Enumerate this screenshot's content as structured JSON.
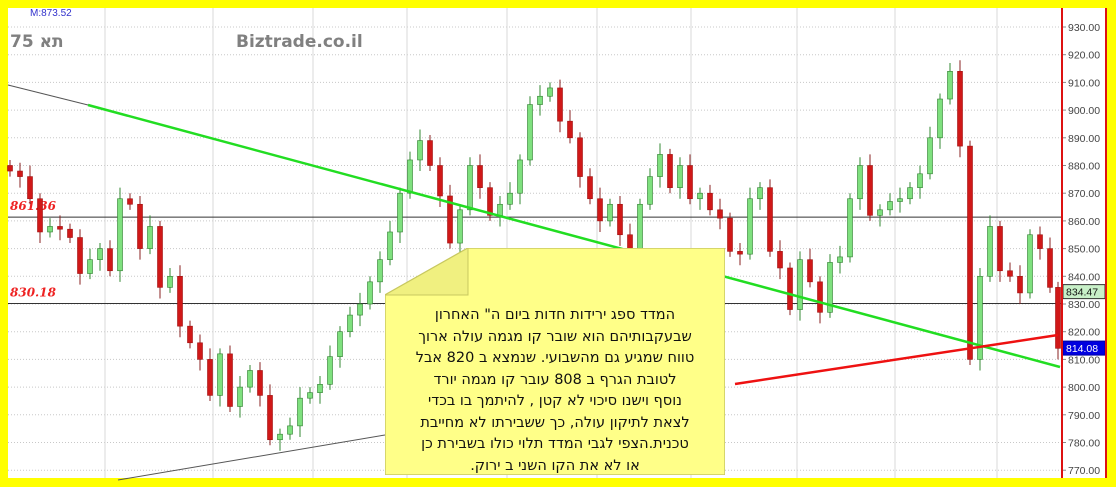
{
  "header": {
    "last_value_label": "M:873.52",
    "index_name": "תא 75",
    "site": "Biztrade.co.il"
  },
  "chart_data": {
    "type": "candlestick",
    "title": "",
    "ylim": [
      768,
      934
    ],
    "y_ticks": [
      "930.00",
      "920.00",
      "910.00",
      "900.00",
      "890.00",
      "880.00",
      "870.00",
      "860.00",
      "850.00",
      "840.00",
      "830.00",
      "820.00",
      "810.00",
      "800.00",
      "790.00",
      "780.00",
      "770.00"
    ],
    "closes": [
      878,
      876,
      868,
      856,
      858,
      857,
      854,
      841,
      846,
      850,
      842,
      868,
      866,
      850,
      858,
      836,
      840,
      822,
      816,
      810,
      797,
      812,
      793,
      800,
      806,
      797,
      781,
      783,
      786,
      796,
      798,
      801,
      811,
      820,
      826,
      830,
      838,
      846,
      856,
      870,
      882,
      889,
      880,
      869,
      852,
      864,
      880,
      872,
      862,
      866,
      870,
      882,
      902,
      905,
      908,
      896,
      890,
      876,
      868,
      860,
      866,
      855,
      848,
      866,
      876,
      884,
      872,
      880,
      868,
      870,
      864,
      861,
      849,
      848,
      868,
      872,
      849,
      843,
      828,
      846,
      838,
      827,
      845,
      847,
      868,
      880,
      862,
      864,
      867,
      868,
      872,
      877,
      890,
      904,
      914,
      887,
      810,
      840,
      858,
      842,
      840,
      834,
      855,
      850,
      836,
      814
    ],
    "first_open": 880,
    "horizontal_levels": [
      {
        "label": "861.36",
        "value": 861.36
      },
      {
        "label": "830.18",
        "value": 830.18
      }
    ],
    "price_markers": [
      {
        "label": "834.47",
        "value": 834.47,
        "color": "#c8f0c8"
      },
      {
        "label": "814.08",
        "value": 814.08,
        "color": "#0000e0"
      }
    ],
    "colors": {
      "up": "#7ee07e",
      "down": "#d01818",
      "green_trend": "#22dd22",
      "red_trend": "#ee1111",
      "frame": "#ffff00"
    }
  },
  "note": {
    "lines": [
      "המדד ספג ירידות חדות ביום ה\" האחרון",
      "שבעקבותיהם הוא שובר קו מגמה עולה ארוך",
      "טווח שמגיע גם מהשבועי. שנמצא ב 820 אבל",
      "לטובת הגרף ב 808 עובר קו מגמה יורד",
      "נוסף וישנו סיכוי לא קטן , להיתמך בו בכדי",
      "לצאת לתיקון עולה, כך ששבירתו לא מחייבת",
      "טכנית.הצפי לגבי המדד תלוי כולו בשבירת כן",
      "או לא את הקו השני ב ירוק."
    ]
  }
}
